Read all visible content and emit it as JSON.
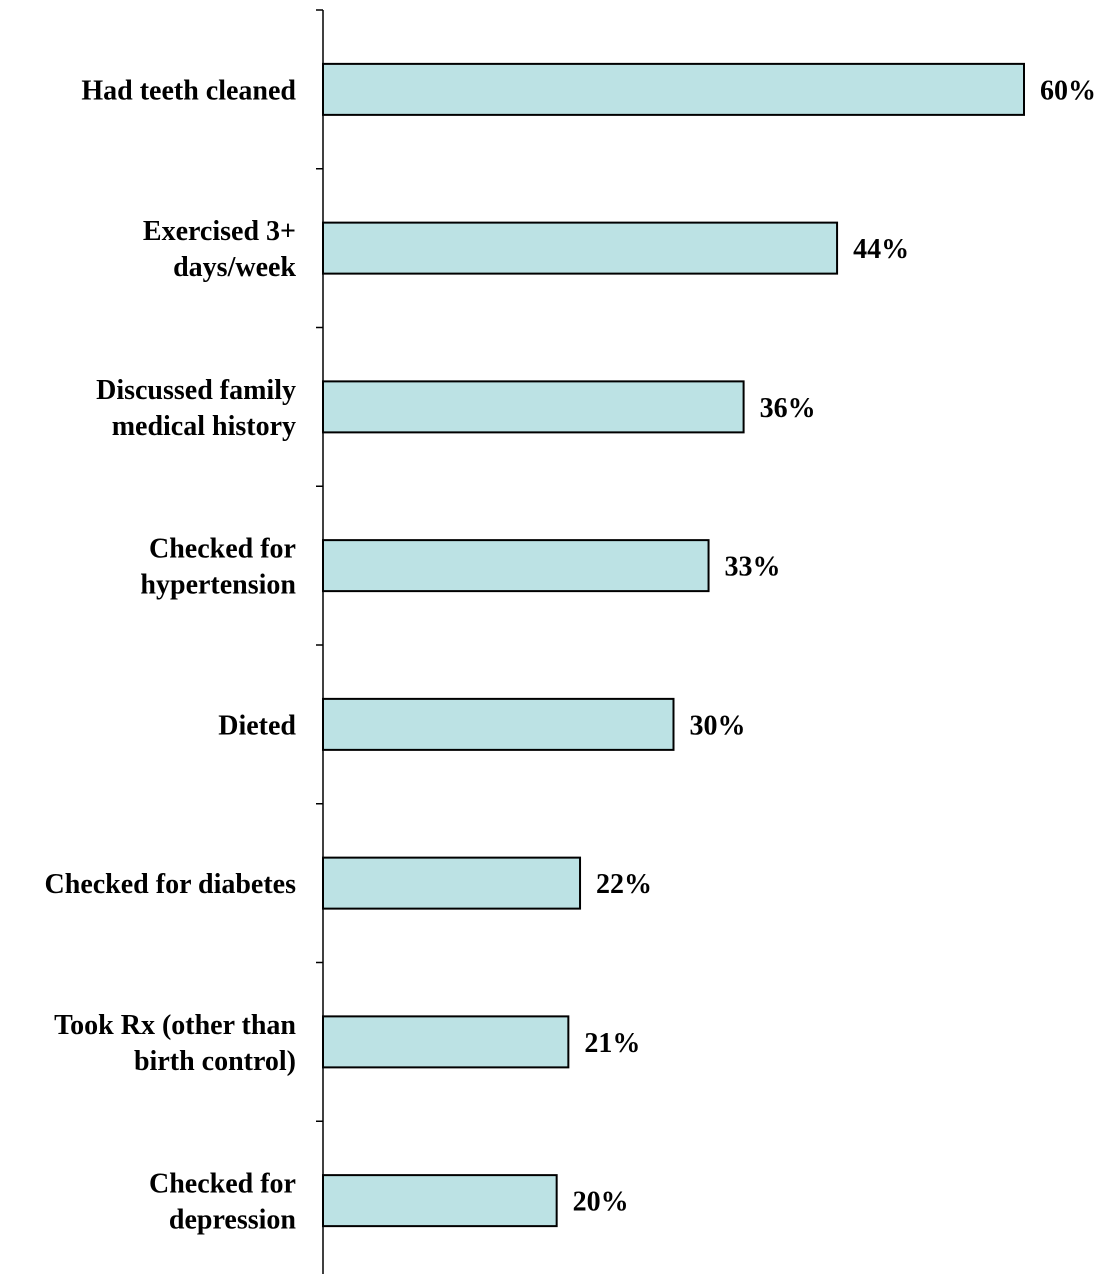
{
  "chart_data": {
    "type": "bar",
    "orientation": "horizontal",
    "categories": [
      [
        "Had teeth cleaned"
      ],
      [
        "Exercised 3+",
        "days/week"
      ],
      [
        "Discussed family",
        "medical history"
      ],
      [
        "Checked for",
        "hypertension"
      ],
      [
        "Dieted"
      ],
      [
        "Checked for diabetes"
      ],
      [
        "Took Rx (other than",
        "birth control)"
      ],
      [
        "Checked for",
        "depression"
      ]
    ],
    "values": [
      60,
      44,
      36,
      33,
      30,
      22,
      21,
      20
    ],
    "value_labels": [
      "60%",
      "44%",
      "36%",
      "33%",
      "30%",
      "22%",
      "21%",
      "20%"
    ],
    "xlim": [
      0,
      60
    ],
    "title": "",
    "xlabel": "",
    "ylabel": "",
    "grid": false,
    "legend": "none",
    "colors": {
      "bar_fill": "#bce2e4",
      "bar_stroke": "#000000",
      "axis": "#000000",
      "text": "#000000"
    }
  }
}
